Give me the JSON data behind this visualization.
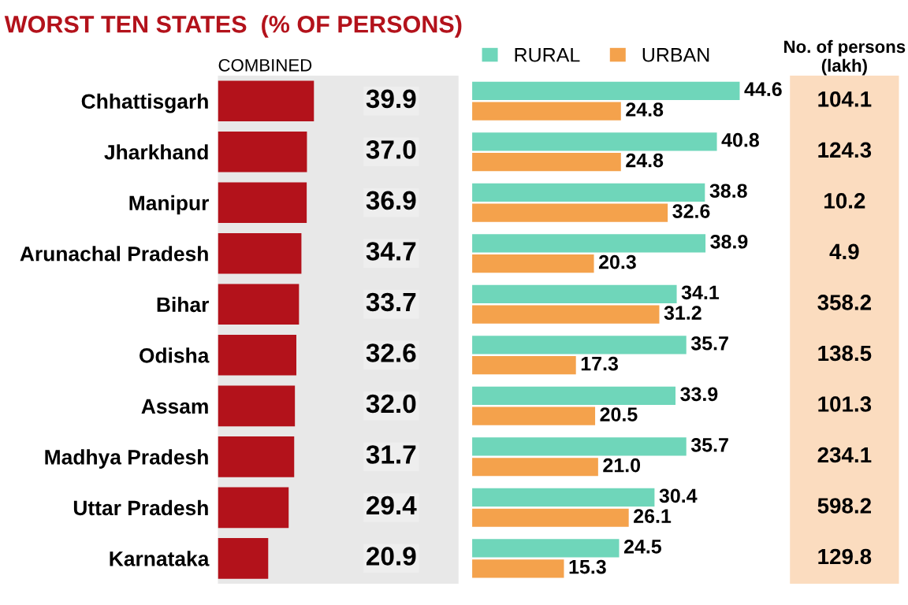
{
  "chart_data": [
    {
      "type": "bar",
      "orientation": "horizontal",
      "title": "WORST TEN STATES  (% OF PERSONS)",
      "xlabel": "COMBINED",
      "categories": [
        "Chhattisgarh",
        "Jharkhand",
        "Manipur",
        "Arunachal Pradesh",
        "Bihar",
        "Odisha",
        "Assam",
        "Madhya Pradesh",
        "Uttar Pradesh",
        "Karnataka"
      ],
      "values": [
        39.9,
        37.0,
        36.9,
        34.7,
        33.7,
        32.6,
        32.0,
        31.7,
        29.4,
        20.9
      ],
      "value_labels": [
        "39.9",
        "37.0",
        "36.9",
        "34.7",
        "33.7",
        "32.6",
        "32.0",
        "31.7",
        "29.4",
        "20.9"
      ],
      "color": "#b3121b",
      "xlim": [
        0,
        100
      ],
      "tick_labels": "y"
    },
    {
      "type": "bar",
      "orientation": "horizontal",
      "legend": "top",
      "series": [
        {
          "name": "RURAL",
          "color": "#6fd6ba",
          "values": [
            44.6,
            40.8,
            38.8,
            38.9,
            34.1,
            35.7,
            33.9,
            35.7,
            30.4,
            24.5
          ],
          "value_labels": [
            "44.6",
            "40.8",
            "38.8",
            "38.9",
            "34.1",
            "35.7",
            "33.9",
            "35.7",
            "30.4",
            "24.5"
          ]
        },
        {
          "name": "URBAN",
          "color": "#f4a24c",
          "values": [
            24.8,
            24.8,
            32.6,
            20.3,
            31.2,
            17.3,
            20.5,
            21.0,
            26.1,
            15.3
          ],
          "value_labels": [
            "24.8",
            "24.8",
            "32.6",
            "20.3",
            "31.2",
            "17.3",
            "20.5",
            "21.0",
            "26.1",
            "15.3"
          ]
        }
      ]
    },
    {
      "type": "other",
      "title": "No. of persons (lakh)",
      "color": "#fbdcbf",
      "annotations": [
        "104.1",
        "124.3",
        "10.2",
        "4.9",
        "358.2",
        "138.5",
        "101.3",
        "234.1",
        "598.2",
        "129.8"
      ]
    }
  ]
}
